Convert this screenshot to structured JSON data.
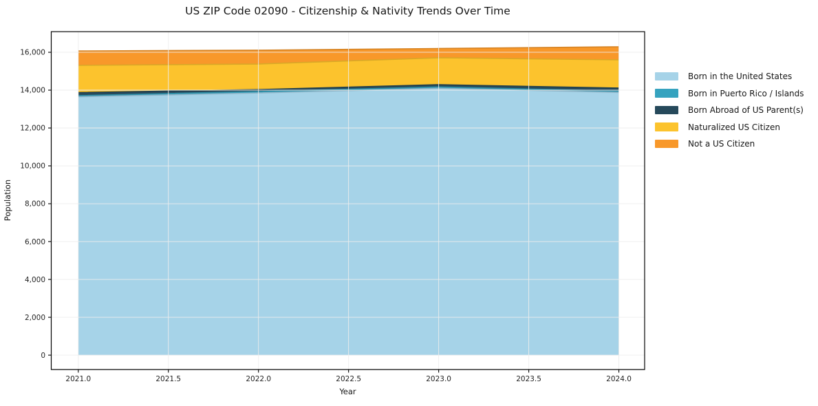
{
  "figure": {
    "title": "US ZIP Code 02090 - Citizenship & Nativity Trends Over Time",
    "xlabel": "Year",
    "ylabel": "Population"
  },
  "chart_data": {
    "type": "area",
    "stacked": true,
    "title": "US ZIP Code 02090 - Citizenship & Nativity Trends Over Time",
    "xlabel": "Year",
    "ylabel": "Population",
    "x": [
      2021,
      2022,
      2023,
      2024
    ],
    "series": [
      {
        "name": "Born in the United States",
        "color": "#a6d3e8",
        "values": [
          13650,
          13850,
          14100,
          13880
        ]
      },
      {
        "name": "Born in Puerto Rico / Islands",
        "color": "#36a3bf",
        "values": [
          60,
          80,
          70,
          70
        ]
      },
      {
        "name": "Born Abroad of US Parent(s)",
        "color": "#26495b",
        "values": [
          160,
          100,
          120,
          160
        ]
      },
      {
        "name": "Naturalized US Citizen",
        "color": "#fcc32d",
        "values": [
          1440,
          1350,
          1420,
          1490
        ]
      },
      {
        "name": "Not a US Citizen",
        "color": "#f8982a",
        "values": [
          760,
          730,
          490,
          690
        ]
      }
    ],
    "stack_totals": [
      16070,
      16110,
      16200,
      16290
    ],
    "xticks": {
      "values": [
        2021.0,
        2021.5,
        2022.0,
        2022.5,
        2023.0,
        2023.5,
        2024.0
      ],
      "labels": [
        "2021.0",
        "2021.5",
        "2022.0",
        "2022.5",
        "2023.0",
        "2023.5",
        "2024.0"
      ]
    },
    "yticks": {
      "values": [
        0,
        2000,
        4000,
        6000,
        8000,
        10000,
        12000,
        14000,
        16000
      ],
      "labels": [
        "0",
        "2,000",
        "4,000",
        "6,000",
        "8,000",
        "10,000",
        "12,000",
        "14,000",
        "16,000"
      ]
    },
    "xlim": [
      2020.85,
      2024.143
    ],
    "ylim": [
      -760,
      17090
    ],
    "grid": true,
    "legend_position": "right-outside-top"
  },
  "colors": {
    "background": "#ffffff",
    "gridline": "#ededed",
    "spine": "#000000",
    "tick_text": "#1f1f1f"
  }
}
